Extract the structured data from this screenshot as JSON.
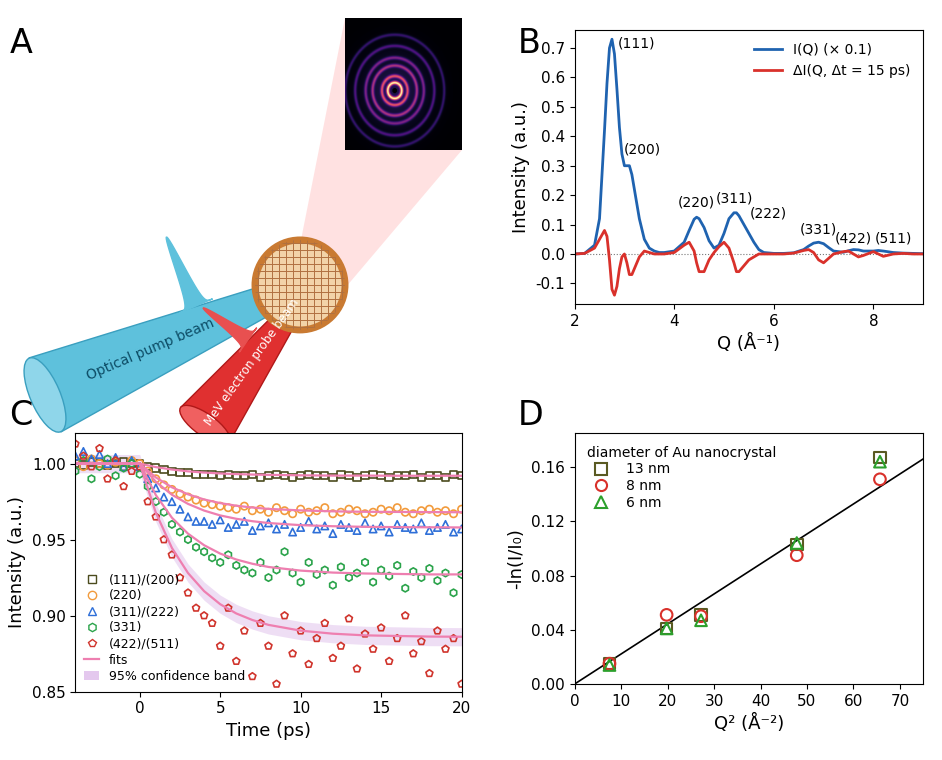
{
  "diagram": {
    "panel_label": "A",
    "pump_beam": "Optical pump beam",
    "probe_beam": "MeV electron probe beam"
  },
  "chart_data": [
    {
      "panel_label": "B",
      "type": "line",
      "xlabel": "Q (Å⁻¹)",
      "ylabel": "Intensity (a.u.)",
      "xlim": [
        2,
        9
      ],
      "xticks": [
        2,
        4,
        6,
        8
      ],
      "ylim": [
        -0.17,
        0.76
      ],
      "yticks": [
        -0.1,
        0.0,
        0.1,
        0.2,
        0.3,
        0.4,
        0.5,
        0.6,
        0.7
      ],
      "baseline": 0.0,
      "legend": "upper right",
      "x": [
        2.0,
        2.2,
        2.4,
        2.5,
        2.6,
        2.65,
        2.7,
        2.75,
        2.8,
        2.85,
        2.9,
        2.95,
        3.0,
        3.05,
        3.1,
        3.15,
        3.2,
        3.3,
        3.4,
        3.5,
        3.6,
        3.7,
        3.8,
        4.0,
        4.2,
        4.3,
        4.4,
        4.45,
        4.5,
        4.6,
        4.7,
        4.8,
        4.9,
        5.0,
        5.1,
        5.2,
        5.25,
        5.3,
        5.4,
        5.5,
        5.6,
        5.7,
        5.8,
        6.0,
        6.2,
        6.4,
        6.6,
        6.7,
        6.8,
        6.9,
        7.0,
        7.1,
        7.2,
        7.4,
        7.5,
        7.6,
        7.7,
        7.8,
        8.0,
        8.1,
        8.2,
        8.4,
        8.6,
        8.8,
        9.0
      ],
      "series": [
        {
          "name": "I(Q) (× 0.1)",
          "color": "#1f63b0",
          "values": [
            0.0,
            0.002,
            0.03,
            0.12,
            0.42,
            0.58,
            0.7,
            0.73,
            0.68,
            0.56,
            0.43,
            0.34,
            0.3,
            0.3,
            0.3,
            0.27,
            0.22,
            0.12,
            0.05,
            0.02,
            0.01,
            0.005,
            0.005,
            0.01,
            0.04,
            0.08,
            0.118,
            0.125,
            0.12,
            0.09,
            0.045,
            0.02,
            0.03,
            0.07,
            0.12,
            0.14,
            0.14,
            0.13,
            0.1,
            0.07,
            0.04,
            0.015,
            0.005,
            0.002,
            0.002,
            0.004,
            0.015,
            0.027,
            0.037,
            0.04,
            0.035,
            0.022,
            0.01,
            0.006,
            0.011,
            0.015,
            0.014,
            0.01,
            0.01,
            0.012,
            0.01,
            0.005,
            0.003,
            0.002,
            0.001
          ]
        },
        {
          "name": "ΔI(Q, Δt = 15 ps)",
          "color": "#d9312b",
          "values": [
            0.0,
            0.002,
            0.02,
            0.05,
            0.08,
            0.06,
            -0.02,
            -0.12,
            -0.14,
            -0.11,
            -0.05,
            -0.01,
            0.0,
            -0.03,
            -0.07,
            -0.07,
            -0.05,
            -0.01,
            0.01,
            0.005,
            0.0,
            0.0,
            0.0,
            0.005,
            0.03,
            0.04,
            0.01,
            -0.03,
            -0.06,
            -0.06,
            -0.02,
            0.005,
            0.025,
            0.04,
            0.02,
            -0.03,
            -0.06,
            -0.06,
            -0.04,
            -0.02,
            -0.01,
            0.0,
            0.0,
            0.0,
            0.0,
            0.003,
            0.012,
            0.015,
            0.005,
            -0.02,
            -0.03,
            -0.015,
            0.0,
            0.008,
            0.01,
            0.0,
            -0.01,
            -0.005,
            0.008,
            0.0,
            -0.008,
            0.0,
            0.002,
            0.0,
            0.0
          ]
        }
      ],
      "annotations": [
        {
          "text": "(111)",
          "x": 3.25,
          "y": 0.69
        },
        {
          "text": "(200)",
          "x": 3.35,
          "y": 0.33
        },
        {
          "text": "(220)",
          "x": 4.45,
          "y": 0.15
        },
        {
          "text": "(311)",
          "x": 5.2,
          "y": 0.165
        },
        {
          "text": "(222)",
          "x": 5.9,
          "y": 0.115
        },
        {
          "text": "(331)",
          "x": 6.9,
          "y": 0.06
        },
        {
          "text": "(422)",
          "x": 7.6,
          "y": 0.03
        },
        {
          "text": "(511)",
          "x": 8.4,
          "y": 0.03
        }
      ]
    },
    {
      "panel_label": "C",
      "type": "scatter",
      "xlabel": "Time (ps)",
      "ylabel": "Intensity (a.u.)",
      "xlim": [
        -4,
        20
      ],
      "xticks": [
        0,
        5,
        10,
        15,
        20
      ],
      "ylim": [
        0.85,
        1.02
      ],
      "yticks": [
        {
          "value": 0.85,
          "label": "0.85"
        },
        {
          "value": 0.9,
          "label": "0.90"
        },
        {
          "value": 0.95,
          "label": "0.95"
        },
        {
          "value": 1.0,
          "label": "1.00"
        }
      ],
      "legend": "lower left",
      "x": [
        -4.0,
        -3.5,
        -3.0,
        -2.5,
        -2.0,
        -1.5,
        -1.0,
        -0.5,
        0.0,
        0.5,
        1.0,
        1.5,
        2.0,
        2.5,
        3.0,
        3.5,
        4.0,
        4.5,
        5.0,
        5.5,
        6.0,
        6.5,
        7.0,
        7.5,
        8.0,
        8.5,
        9.0,
        9.5,
        10.0,
        10.5,
        11.0,
        11.5,
        12.0,
        12.5,
        13.0,
        13.5,
        14.0,
        14.5,
        15.0,
        15.5,
        16.0,
        16.5,
        17.0,
        17.5,
        18.0,
        18.5,
        19.0,
        19.5,
        20.0
      ],
      "series": [
        {
          "name": "(111)/(200)",
          "color": "#4b4b1e",
          "marker": "square",
          "values": [
            1.0,
            0.999,
            1.001,
            1.0,
            0.999,
            1.0,
            1.001,
            1.0,
            1.0,
            0.998,
            0.997,
            0.996,
            0.995,
            0.994,
            0.994,
            0.993,
            0.993,
            0.993,
            0.992,
            0.993,
            0.992,
            0.992,
            0.993,
            0.991,
            0.992,
            0.993,
            0.992,
            0.991,
            0.992,
            0.993,
            0.992,
            0.992,
            0.991,
            0.993,
            0.992,
            0.991,
            0.992,
            0.993,
            0.992,
            0.991,
            0.992,
            0.992,
            0.993,
            0.991,
            0.992,
            0.992,
            0.991,
            0.993,
            0.992
          ]
        },
        {
          "name": "(220)",
          "color": "#f29b3c",
          "marker": "circle",
          "values": [
            1.002,
            0.998,
            1.003,
            1.0,
            0.999,
            1.001,
            0.998,
            1.002,
            1.0,
            0.995,
            0.99,
            0.986,
            0.983,
            0.98,
            0.978,
            0.976,
            0.974,
            0.973,
            0.972,
            0.971,
            0.97,
            0.972,
            0.969,
            0.97,
            0.968,
            0.971,
            0.969,
            0.967,
            0.97,
            0.968,
            0.969,
            0.971,
            0.967,
            0.968,
            0.97,
            0.969,
            0.967,
            0.968,
            0.97,
            0.969,
            0.971,
            0.968,
            0.967,
            0.969,
            0.97,
            0.968,
            0.969,
            0.967,
            0.97
          ]
        },
        {
          "name": "(311)/(222)",
          "color": "#2e6fd8",
          "marker": "triangle",
          "values": [
            1.005,
            1.008,
            1.003,
            1.006,
            1.0,
            1.004,
            0.998,
            1.002,
            0.998,
            0.99,
            0.984,
            0.978,
            0.975,
            0.97,
            0.965,
            0.962,
            0.962,
            0.96,
            0.963,
            0.958,
            0.96,
            0.962,
            0.956,
            0.959,
            0.961,
            0.957,
            0.96,
            0.955,
            0.958,
            0.962,
            0.957,
            0.959,
            0.954,
            0.96,
            0.958,
            0.956,
            0.961,
            0.957,
            0.959,
            0.955,
            0.96,
            0.958,
            0.957,
            0.961,
            0.956,
            0.958,
            0.96,
            0.955,
            0.957
          ]
        },
        {
          "name": "(331)",
          "color": "#2aa34a",
          "marker": "hexagon",
          "values": [
            0.995,
            1.002,
            0.99,
            0.998,
            1.003,
            0.992,
            0.997,
            1.0,
            0.993,
            0.985,
            0.975,
            0.968,
            0.96,
            0.955,
            0.95,
            0.945,
            0.942,
            0.938,
            0.935,
            0.94,
            0.933,
            0.93,
            0.928,
            0.935,
            0.925,
            0.93,
            0.942,
            0.928,
            0.922,
            0.935,
            0.927,
            0.93,
            0.92,
            0.932,
            0.925,
            0.928,
            0.935,
            0.922,
            0.93,
            0.926,
            0.933,
            0.918,
            0.929,
            0.925,
            0.931,
            0.923,
            0.928,
            0.915,
            0.927
          ]
        },
        {
          "name": "(422)/(511)",
          "color": "#d0342c",
          "marker": "pentagon",
          "values": [
            1.013,
            1.005,
            0.998,
            1.01,
            0.99,
            1.002,
            0.985,
            0.995,
            0.998,
            0.975,
            0.965,
            0.95,
            0.94,
            0.925,
            0.915,
            0.905,
            0.9,
            0.895,
            0.88,
            0.905,
            0.87,
            0.89,
            0.86,
            0.895,
            0.88,
            0.855,
            0.9,
            0.875,
            0.89,
            0.868,
            0.885,
            0.895,
            0.872,
            0.88,
            0.898,
            0.865,
            0.888,
            0.878,
            0.892,
            0.87,
            0.885,
            0.9,
            0.875,
            0.883,
            0.862,
            0.89,
            0.878,
            0.885,
            0.855
          ]
        }
      ],
      "fits": {
        "name": "fits",
        "color": "#ee7fb0",
        "x": [
          -4,
          -2,
          0,
          1,
          2,
          3,
          4,
          5,
          6,
          7,
          8,
          10,
          12,
          14,
          16,
          18,
          20
        ],
        "curves": [
          [
            1,
            1,
            1,
            0.9977,
            0.9961,
            0.9949,
            0.9941,
            0.9935,
            0.9931,
            0.9928,
            0.9926,
            0.9923,
            0.9921,
            0.9921,
            0.992,
            0.992,
            0.992
          ],
          [
            1,
            1,
            1,
            0.9909,
            0.9844,
            0.9798,
            0.9764,
            0.974,
            0.9723,
            0.9711,
            0.9702,
            0.9692,
            0.9686,
            0.9683,
            0.9682,
            0.9681,
            0.968
          ],
          [
            1,
            1,
            1,
            0.9881,
            0.9795,
            0.9735,
            0.9691,
            0.9659,
            0.9637,
            0.9621,
            0.9609,
            0.9595,
            0.9588,
            0.9584,
            0.9582,
            0.9581,
            0.958
          ],
          [
            1,
            1,
            1,
            0.9793,
            0.9644,
            0.9539,
            0.9463,
            0.9408,
            0.9369,
            0.9341,
            0.932,
            0.9296,
            0.9283,
            0.9277,
            0.9274,
            0.9271,
            0.9271
          ],
          [
            1,
            1,
            1,
            0.9677,
            0.9445,
            0.928,
            0.9161,
            0.9075,
            0.9014,
            0.8971,
            0.8939,
            0.8901,
            0.8881,
            0.887,
            0.8866,
            0.8862,
            0.8861
          ]
        ]
      },
      "band": {
        "name": "95% confidence band",
        "color": "#e4c8ee",
        "x": [
          -4,
          -2,
          0,
          1,
          2,
          3,
          4,
          5,
          6,
          7,
          8,
          10,
          12,
          14,
          16,
          18,
          20
        ],
        "lower": [
          0.994,
          0.994,
          0.994,
          0.9617,
          0.9385,
          0.922,
          0.9101,
          0.9015,
          0.8954,
          0.8911,
          0.8879,
          0.8841,
          0.8821,
          0.881,
          0.8806,
          0.8802,
          0.8801
        ],
        "upper": [
          1.006,
          1.006,
          1.006,
          0.9737,
          0.9505,
          0.934,
          0.9221,
          0.9135,
          0.9074,
          0.9031,
          0.8999,
          0.8961,
          0.8941,
          0.893,
          0.8926,
          0.8922,
          0.8921
        ]
      }
    },
    {
      "panel_label": "D",
      "type": "scatter",
      "xlabel": "Q² (Å⁻²)",
      "ylabel": "-ln(I/I₀)",
      "xlim": [
        0,
        75
      ],
      "xticks": [
        0,
        10,
        20,
        30,
        40,
        50,
        60,
        70
      ],
      "ylim": [
        0,
        0.185
      ],
      "yticks": [
        {
          "value": 0,
          "label": "0.00"
        },
        {
          "value": 0.04,
          "label": "0.04"
        },
        {
          "value": 0.08,
          "label": "0.08"
        },
        {
          "value": 0.12,
          "label": "0.12"
        },
        {
          "value": 0.16,
          "label": "0.16"
        }
      ],
      "legend": "upper left",
      "legend_title": "diameter of Au nanocrystal",
      "x": [
        7.5,
        19.8,
        27.2,
        47.8,
        65.7
      ],
      "series": [
        {
          "name": "13 nm",
          "color": "#5a5a22",
          "marker": "square",
          "values": [
            0.015,
            0.041,
            0.051,
            0.103,
            0.167
          ]
        },
        {
          "name": "8 nm",
          "color": "#d9312b",
          "marker": "circle",
          "values": [
            0.015,
            0.051,
            0.05,
            0.095,
            0.151
          ]
        },
        {
          "name": "6 nm",
          "color": "#2ca02c",
          "marker": "triangle",
          "values": [
            0.014,
            0.041,
            0.047,
            0.104,
            0.164
          ]
        },
        {
          "type": "line",
          "color": "#000000",
          "x": [
            0,
            75
          ],
          "values": [
            0,
            0.166
          ]
        }
      ]
    }
  ]
}
